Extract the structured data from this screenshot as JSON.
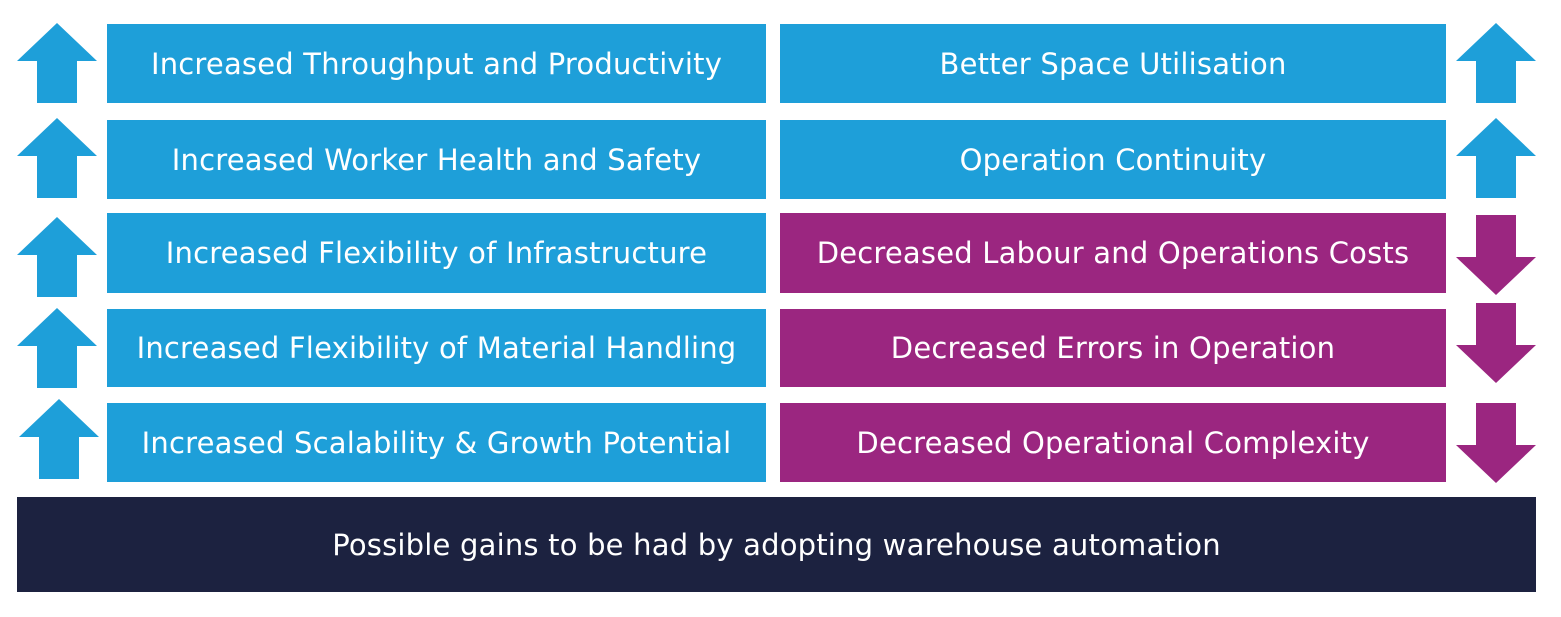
{
  "colors": {
    "increase": "#1e9fd9",
    "decrease": "#9b2680",
    "footer": "#1c2240",
    "text": "#ffffff"
  },
  "left_items": [
    {
      "label": "Increased Throughput and Productivity",
      "direction": "up"
    },
    {
      "label": "Increased Worker Health and Safety",
      "direction": "up"
    },
    {
      "label": "Increased Flexibility of Infrastructure",
      "direction": "up"
    },
    {
      "label": "Increased Flexibility of Material Handling",
      "direction": "up"
    },
    {
      "label": "Increased Scalability & Growth Potential",
      "direction": "up"
    }
  ],
  "right_items": [
    {
      "label": "Better Space Utilisation",
      "direction": "up"
    },
    {
      "label": "Operation Continuity",
      "direction": "up"
    },
    {
      "label": "Decreased Labour and Operations Costs",
      "direction": "down"
    },
    {
      "label": "Decreased Errors in Operation",
      "direction": "down"
    },
    {
      "label": "Decreased Operational Complexity",
      "direction": "down"
    }
  ],
  "footer": {
    "label": "Possible gains to be had by adopting warehouse automation"
  }
}
